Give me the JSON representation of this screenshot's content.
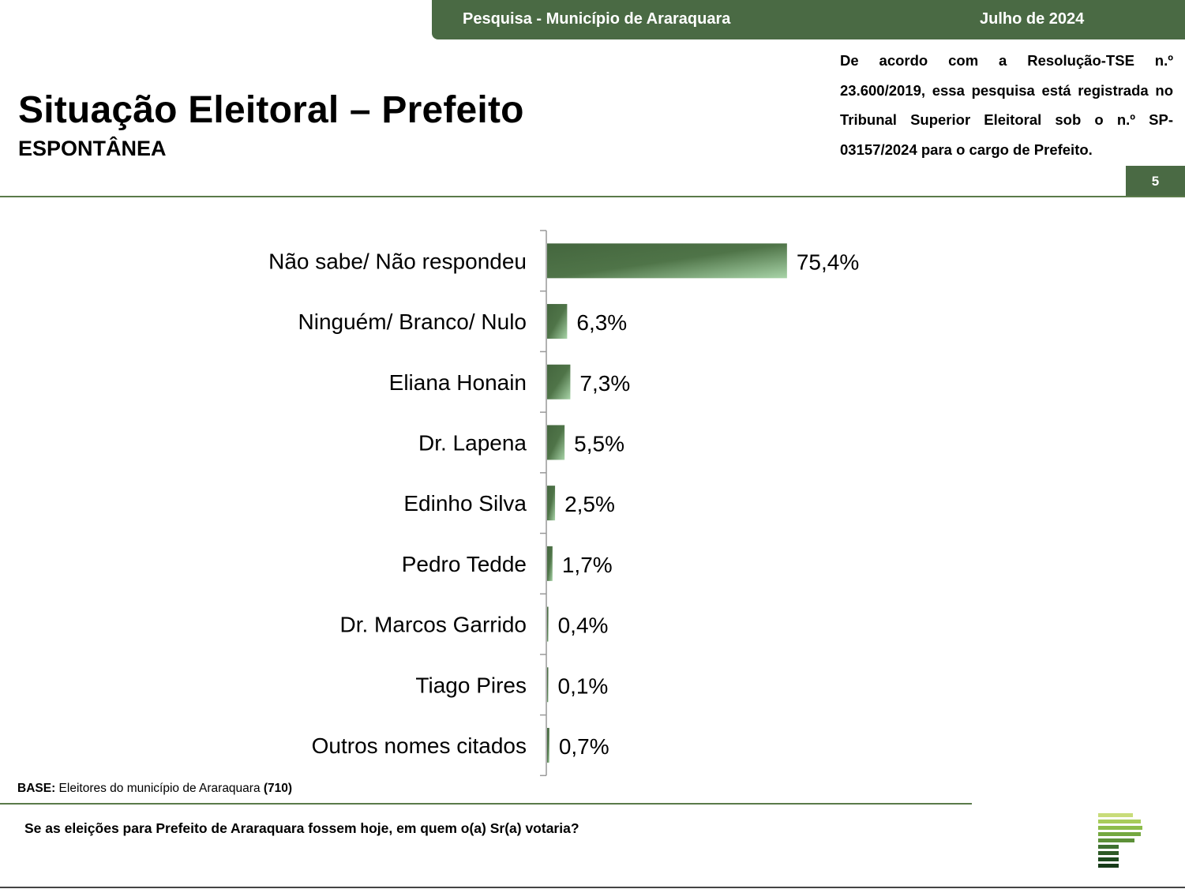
{
  "header": {
    "survey_label": "Pesquisa - Município de Araraquara",
    "date_label": "Julho de 2024",
    "title": "Situação Eleitoral – Prefeito",
    "subtitle": "ESPONTÂNEA",
    "registration_text": "De acordo com a Resolução-TSE n.º 23.600/2019, essa pesquisa está registrada no Tribunal Superior Eleitoral sob o n.º SP-03157/2024 para o cargo de Prefeito.",
    "page_number": "5"
  },
  "footer": {
    "base_label": "BASE:",
    "base_text": " Eleitores do município de Araraquara ",
    "base_count": "(710)",
    "question": "Se as eleições para Prefeito de Araraquara fossem hoje, em quem o(a) Sr(a) votaria?"
  },
  "colors": {
    "brand_green": "#4a6a44",
    "bar_dark": "#44663e",
    "bar_light": "#a8d4a8"
  },
  "chart_data": {
    "type": "bar",
    "orientation": "horizontal",
    "categories": [
      "Não sabe/ Não respondeu",
      "Ninguém/ Branco/ Nulo",
      "Eliana Honain",
      "Dr. Lapena",
      "Edinho Silva",
      "Pedro Tedde",
      "Dr. Marcos Garrido",
      "Tiago Pires",
      "Outros nomes citados"
    ],
    "values": [
      75.4,
      6.3,
      7.3,
      5.5,
      2.5,
      1.7,
      0.4,
      0.1,
      0.7
    ],
    "value_labels": [
      "75,4%",
      "6,3%",
      "7,3%",
      "5,5%",
      "2,5%",
      "1,7%",
      "0,4%",
      "0,1%",
      "0,7%"
    ],
    "title": "",
    "xlabel": "",
    "ylabel": "",
    "xlim": [
      0,
      100
    ],
    "grid": false,
    "legend": "none"
  }
}
